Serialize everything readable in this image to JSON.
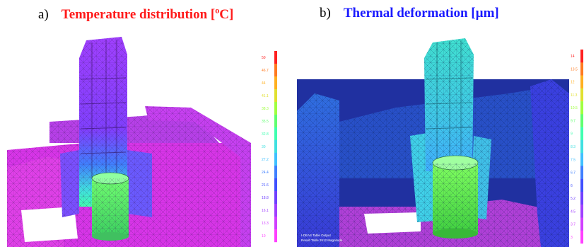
{
  "panels": [
    {
      "letter": "a)",
      "title": "Temperature distribution [",
      "unit_sup": "o",
      "unit_rest": "C]",
      "title_color": "#ff1a1a",
      "legend_ticks": [
        "50",
        "46.7",
        "44",
        "41.1",
        "38.3",
        "35.5",
        "32.8",
        "30",
        "27.2",
        "24.4",
        "21.6",
        "18.8",
        "16.1",
        "13.3",
        "10"
      ],
      "legend_colors": [
        "#ff2020",
        "#ff7a20",
        "#ffb020",
        "#e0e030",
        "#a0ff40",
        "#60ff70",
        "#40ffb0",
        "#40e0e0",
        "#40c0ff",
        "#4080ff",
        "#4050ff",
        "#7040ff",
        "#a040ff",
        "#d040ff",
        "#ff40ff"
      ]
    },
    {
      "letter": "b)",
      "title": "Thermal deformation  [",
      "unit_mu": "µ",
      "unit_rest": "m]",
      "title_color": "#1a1aff",
      "legend_ticks": [
        "14",
        "13.5",
        "12",
        "11.3",
        "10.5",
        "9.7",
        "9",
        "8.3",
        "7.5",
        "6.7",
        "6",
        "5.2",
        "4.5",
        "3.7",
        "3"
      ],
      "legend_colors": [
        "#ff2020",
        "#ff7a20",
        "#ffb020",
        "#e0e030",
        "#a0ff40",
        "#60ff70",
        "#40ffb0",
        "#40e0e0",
        "#40c0ff",
        "#4080ff",
        "#4050ff",
        "#7040ff",
        "#a040ff",
        "#d040ff",
        "#ff40ff"
      ],
      "footer_line1": "I-DEAS Table Output",
      "footer_line2": "Result Table 2912 Magnitude"
    }
  ]
}
